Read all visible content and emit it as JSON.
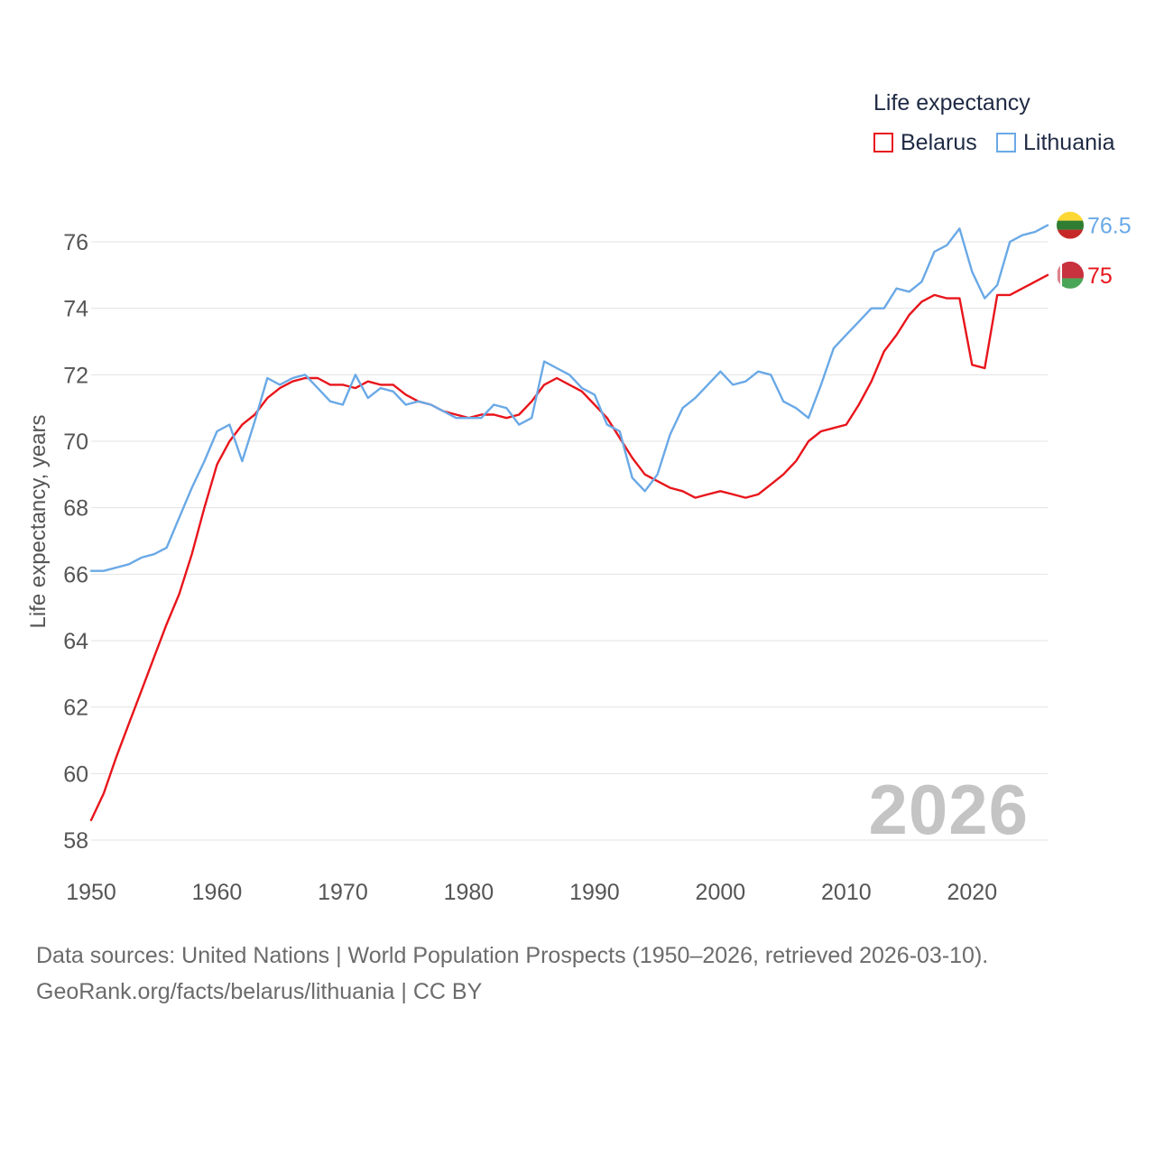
{
  "legend": {
    "title": "Life expectancy",
    "items": [
      {
        "name": "Belarus",
        "color": "#e8151b"
      },
      {
        "name": "Lithuania",
        "color": "#6aa9e6"
      }
    ]
  },
  "year_watermark": "2026",
  "source": {
    "line1": "Data sources: United Nations | World Population Prospects (1950–2026, retrieved 2026-03-10).",
    "line2": "GeoRank.org/facts/belarus/lithuania | CC BY"
  },
  "chart_data": {
    "type": "line",
    "ylabel": "Life expectancy, years",
    "xlabel": "",
    "xlim": [
      1950,
      2026
    ],
    "ylim": [
      57.5,
      77
    ],
    "xticks": [
      1950,
      1960,
      1970,
      1980,
      1990,
      2000,
      2010,
      2020
    ],
    "yticks": [
      58,
      60,
      62,
      64,
      66,
      68,
      70,
      72,
      74,
      76
    ],
    "grid": true,
    "x": [
      1950,
      1951,
      1952,
      1953,
      1954,
      1955,
      1956,
      1957,
      1958,
      1959,
      1960,
      1961,
      1962,
      1963,
      1964,
      1965,
      1966,
      1967,
      1968,
      1969,
      1970,
      1971,
      1972,
      1973,
      1974,
      1975,
      1976,
      1977,
      1978,
      1979,
      1980,
      1981,
      1982,
      1983,
      1984,
      1985,
      1986,
      1987,
      1988,
      1989,
      1990,
      1991,
      1992,
      1993,
      1994,
      1995,
      1996,
      1997,
      1998,
      1999,
      2000,
      2001,
      2002,
      2003,
      2004,
      2005,
      2006,
      2007,
      2008,
      2009,
      2010,
      2011,
      2012,
      2013,
      2014,
      2015,
      2016,
      2017,
      2018,
      2019,
      2020,
      2021,
      2022,
      2023,
      2024,
      2025,
      2026
    ],
    "series": [
      {
        "name": "Belarus",
        "color": "#e8151b",
        "end_label": "75",
        "values": [
          58.6,
          59.4,
          60.5,
          61.5,
          62.5,
          63.5,
          64.5,
          65.4,
          66.6,
          68.0,
          69.3,
          70.0,
          70.5,
          70.8,
          71.3,
          71.6,
          71.8,
          71.9,
          71.9,
          71.7,
          71.7,
          71.6,
          71.8,
          71.7,
          71.7,
          71.4,
          71.2,
          71.1,
          70.9,
          70.8,
          70.7,
          70.8,
          70.8,
          70.7,
          70.8,
          71.2,
          71.7,
          71.9,
          71.7,
          71.5,
          71.1,
          70.7,
          70.1,
          69.5,
          69.0,
          68.8,
          68.6,
          68.5,
          68.3,
          68.4,
          68.5,
          68.4,
          68.3,
          68.4,
          68.7,
          69.0,
          69.4,
          70.0,
          70.3,
          70.4,
          70.5,
          71.1,
          71.8,
          72.7,
          73.2,
          73.8,
          74.2,
          74.4,
          74.3,
          74.3,
          72.3,
          72.2,
          74.4,
          74.4,
          74.6,
          74.8,
          75.0
        ]
      },
      {
        "name": "Lithuania",
        "color": "#6aa9e6",
        "end_label": "76.5",
        "values": [
          66.1,
          66.1,
          66.2,
          66.3,
          66.5,
          66.6,
          66.8,
          67.7,
          68.6,
          69.4,
          70.3,
          70.5,
          69.4,
          70.6,
          71.9,
          71.7,
          71.9,
          72.0,
          71.6,
          71.2,
          71.1,
          72.0,
          71.3,
          71.6,
          71.5,
          71.1,
          71.2,
          71.1,
          70.9,
          70.7,
          70.7,
          70.7,
          71.1,
          71.0,
          70.5,
          70.7,
          72.4,
          72.2,
          72.0,
          71.6,
          71.4,
          70.5,
          70.3,
          68.9,
          68.5,
          69.0,
          70.2,
          71.0,
          71.3,
          71.7,
          72.1,
          71.7,
          71.8,
          72.1,
          72.0,
          71.2,
          71.0,
          70.7,
          71.7,
          72.8,
          73.2,
          73.6,
          74.0,
          74.0,
          74.6,
          74.5,
          74.8,
          75.7,
          75.9,
          76.4,
          75.1,
          74.3,
          74.7,
          76.0,
          76.2,
          76.3,
          76.5
        ]
      }
    ]
  }
}
